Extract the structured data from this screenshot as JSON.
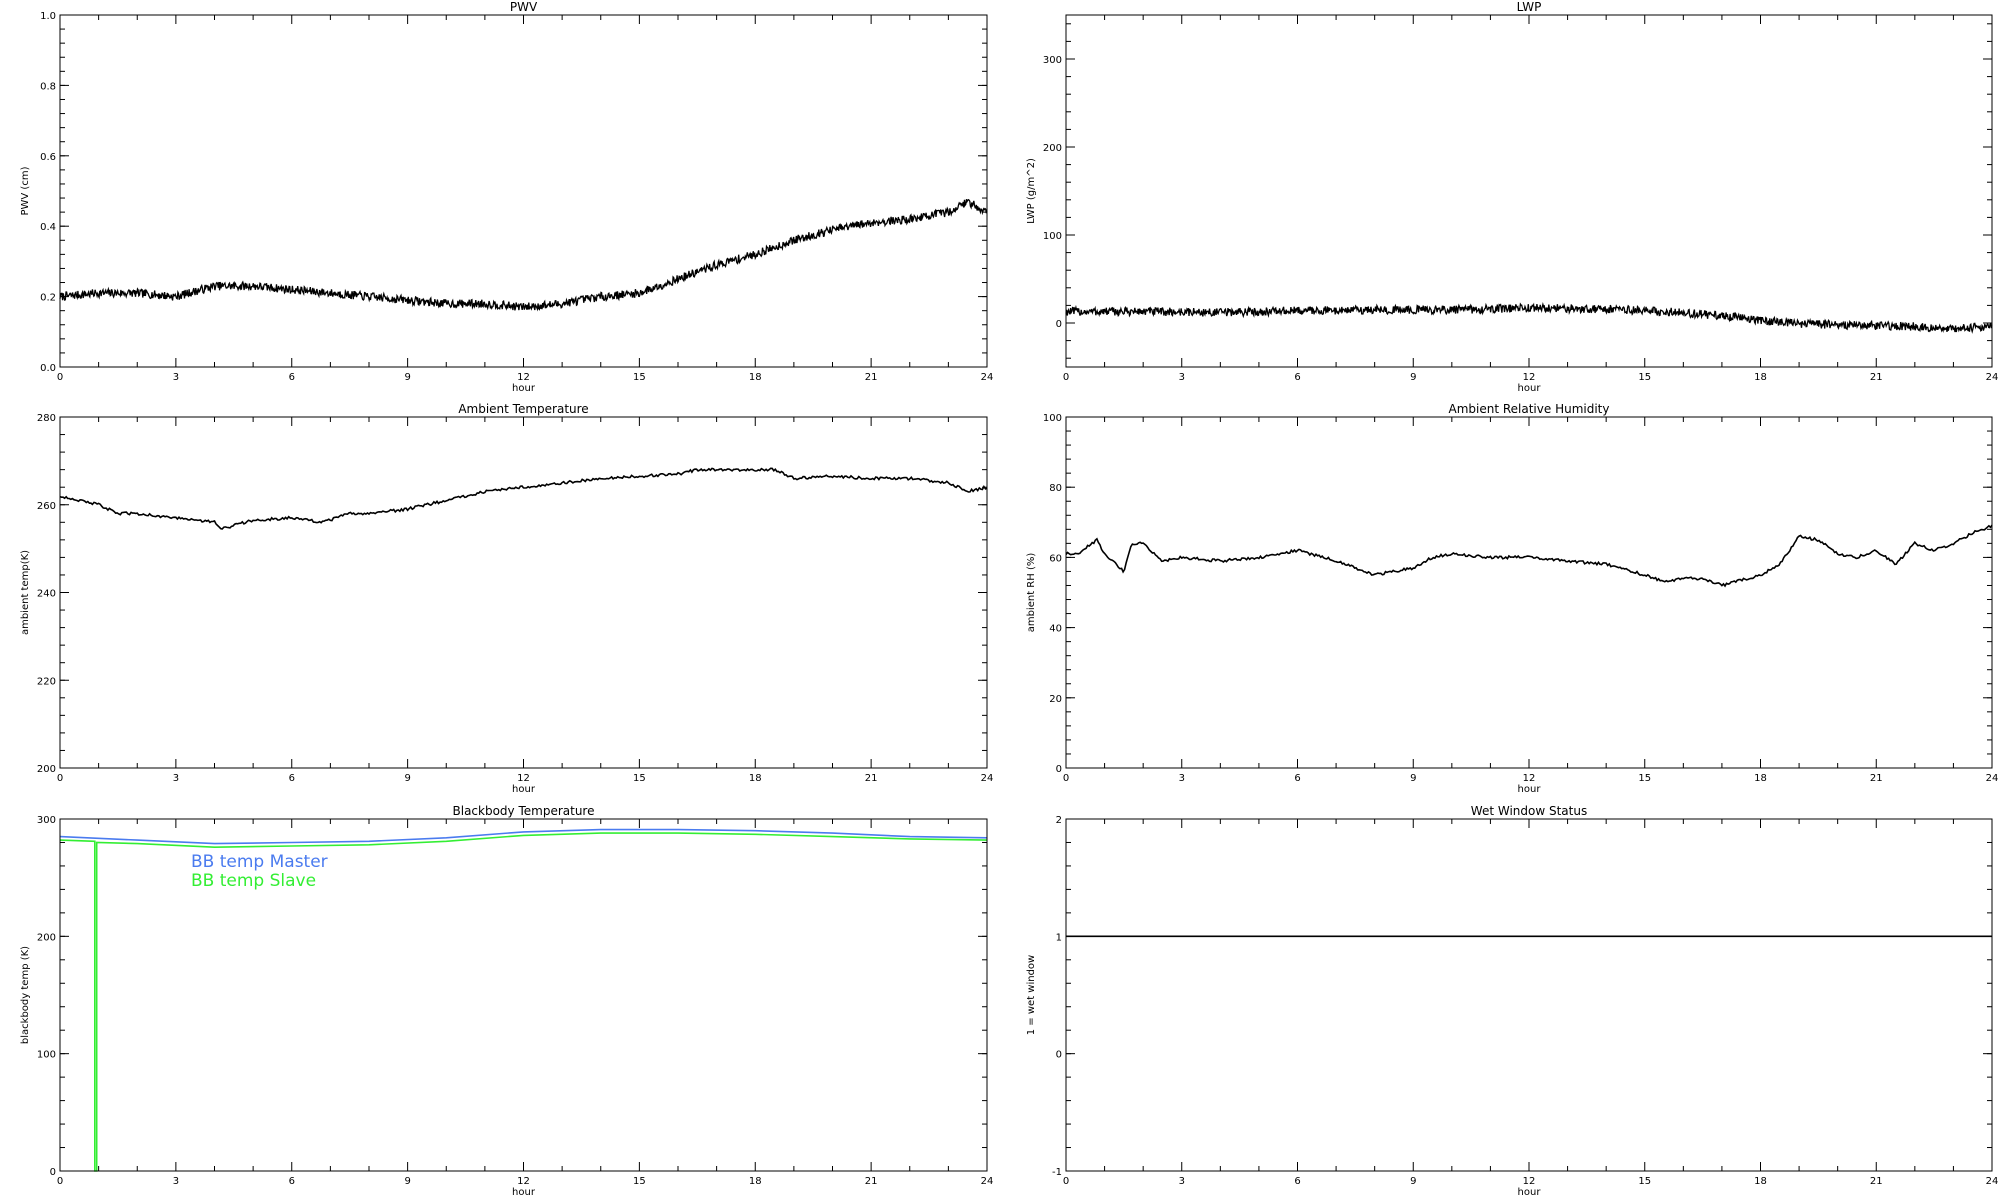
{
  "chart_data": [
    {
      "type": "line",
      "title": "PWV",
      "xlabel": "hour",
      "ylabel": "PWV (cm)",
      "xlim": [
        0,
        24
      ],
      "ylim": [
        0.0,
        1.0
      ],
      "xticks": [
        "0",
        "3",
        "6",
        "9",
        "12",
        "15",
        "18",
        "21",
        "24"
      ],
      "yticks": [
        "0.0",
        "0.2",
        "0.4",
        "0.6",
        "0.8",
        "1.0"
      ],
      "noisy": true,
      "series": [
        {
          "color": "#000000",
          "x": [
            0,
            1,
            2,
            3,
            4,
            5,
            6,
            7,
            8,
            9,
            10,
            11,
            12,
            13,
            14,
            15,
            16,
            17,
            18,
            19,
            20,
            21,
            22,
            23,
            23.5,
            24
          ],
          "values": [
            0.2,
            0.21,
            0.21,
            0.2,
            0.23,
            0.23,
            0.22,
            0.21,
            0.2,
            0.19,
            0.18,
            0.18,
            0.17,
            0.18,
            0.2,
            0.21,
            0.25,
            0.29,
            0.32,
            0.36,
            0.39,
            0.41,
            0.42,
            0.44,
            0.47,
            0.44
          ]
        }
      ]
    },
    {
      "type": "line",
      "title": "LWP",
      "xlabel": "hour",
      "ylabel": "LWP (g/m^2)",
      "xlim": [
        0,
        24
      ],
      "ylim": [
        -50,
        350
      ],
      "xticks": [
        "0",
        "3",
        "6",
        "9",
        "12",
        "15",
        "18",
        "21",
        "24"
      ],
      "yticks": [
        "0",
        "100",
        "200",
        "300"
      ],
      "noisy": true,
      "series": [
        {
          "color": "#000000",
          "x": [
            0,
            2,
            4,
            6,
            8,
            10,
            12,
            14,
            16,
            17,
            18,
            19,
            20,
            21,
            22,
            23,
            24
          ],
          "values": [
            13,
            13,
            12,
            14,
            15,
            15,
            17,
            16,
            12,
            8,
            3,
            -1,
            -2,
            -3,
            -4,
            -7,
            -3
          ]
        }
      ]
    },
    {
      "type": "line",
      "title": "Ambient Temperature",
      "xlabel": "hour",
      "ylabel": "ambient temp(K)",
      "xlim": [
        0,
        24
      ],
      "ylim": [
        200,
        280
      ],
      "xticks": [
        "0",
        "3",
        "6",
        "9",
        "12",
        "15",
        "18",
        "21",
        "24"
      ],
      "yticks": [
        "200",
        "220",
        "240",
        "260",
        "280"
      ],
      "noisy": false,
      "series": [
        {
          "color": "#000000",
          "x": [
            0,
            1,
            1.5,
            2,
            3,
            4,
            4.2,
            5,
            6,
            6.8,
            7.5,
            8,
            9,
            10,
            11,
            12,
            13,
            14,
            15,
            16,
            16.5,
            17,
            18,
            18.5,
            19,
            20,
            21,
            22,
            23,
            23.5,
            24
          ],
          "values": [
            262,
            260,
            258,
            258,
            257,
            256,
            254.5,
            256.5,
            257,
            256,
            258,
            258,
            259,
            261,
            263,
            264,
            265,
            266,
            266.5,
            267,
            268,
            268,
            268,
            268,
            266,
            266.5,
            266,
            266,
            265,
            263,
            264
          ]
        }
      ]
    },
    {
      "type": "line",
      "title": "Ambient Relative Humidity",
      "xlabel": "hour",
      "ylabel": "ambient RH (%)",
      "xlim": [
        0,
        24
      ],
      "ylim": [
        0,
        100
      ],
      "xticks": [
        "0",
        "3",
        "6",
        "9",
        "12",
        "15",
        "18",
        "21",
        "24"
      ],
      "yticks": [
        "0",
        "20",
        "40",
        "60",
        "80",
        "100"
      ],
      "noisy": false,
      "series": [
        {
          "color": "#000000",
          "x": [
            0,
            0.3,
            0.8,
            1,
            1.5,
            1.7,
            2,
            2.5,
            3,
            4,
            5,
            6,
            7,
            8,
            9,
            9.5,
            10,
            11,
            12,
            13,
            14,
            15,
            15.5,
            16,
            16.5,
            17,
            18,
            18.5,
            19,
            19.5,
            20,
            20.5,
            21,
            21.5,
            22,
            22.5,
            23,
            23.5,
            24
          ],
          "values": [
            61,
            61,
            65,
            61,
            56,
            64,
            64,
            59,
            60,
            59,
            60,
            62,
            59,
            55,
            57,
            60,
            61,
            60,
            60,
            59,
            58,
            55,
            53,
            54,
            54,
            52,
            55,
            58,
            66,
            65,
            61,
            60,
            62,
            58,
            64,
            62,
            64,
            67,
            69
          ]
        }
      ]
    },
    {
      "type": "line",
      "title": "Blackbody Temperature",
      "xlabel": "hour",
      "ylabel": "blackbody temp (K)",
      "xlim": [
        0,
        24
      ],
      "ylim": [
        0,
        300
      ],
      "xticks": [
        "0",
        "3",
        "6",
        "9",
        "12",
        "15",
        "18",
        "21",
        "24"
      ],
      "yticks": [
        "0",
        "100",
        "200",
        "300"
      ],
      "noisy": false,
      "legend": [
        {
          "label": "BB temp Master",
          "color": "#4a7bef"
        },
        {
          "label": "BB temp Slave",
          "color": "#33ee33"
        }
      ],
      "series": [
        {
          "name": "BB temp Master",
          "color": "#4a7bef",
          "x": [
            0,
            2,
            4,
            6,
            8,
            10,
            12,
            14,
            16,
            18,
            20,
            22,
            24
          ],
          "values": [
            285,
            282,
            279,
            280,
            281,
            284,
            289,
            291,
            291,
            290,
            288,
            285,
            284
          ]
        },
        {
          "name": "BB temp Slave",
          "color": "#33ee33",
          "x": [
            0,
            0.9,
            0.9,
            0.95,
            0.95,
            2,
            4,
            6,
            8,
            10,
            12,
            14,
            16,
            18,
            20,
            22,
            24
          ],
          "values": [
            282,
            281,
            0,
            0,
            280,
            279,
            276,
            277,
            278,
            281,
            286,
            288,
            288,
            287,
            285,
            283,
            282
          ]
        }
      ]
    },
    {
      "type": "line",
      "title": "Wet Window Status",
      "xlabel": "hour",
      "ylabel": "1 = wet window",
      "xlim": [
        0,
        24
      ],
      "ylim": [
        -1,
        2
      ],
      "xticks": [
        "0",
        "3",
        "6",
        "9",
        "12",
        "15",
        "18",
        "21",
        "24"
      ],
      "yticks": [
        "-1",
        "0",
        "1",
        "2"
      ],
      "noisy": false,
      "series": [
        {
          "color": "#000000",
          "x": [
            0,
            24
          ],
          "values": [
            1,
            1
          ]
        }
      ]
    }
  ]
}
